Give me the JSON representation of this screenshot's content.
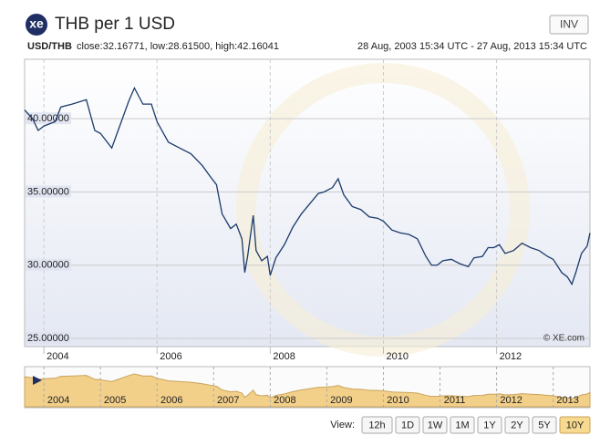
{
  "header": {
    "logo": "xe",
    "title": "THB per 1 USD",
    "button": "INV"
  },
  "info": {
    "pair": "USD/THB",
    "stats": "close:32.16771, low:28.61500, high:42.16041",
    "range": "28 Aug, 2003 15:34 UTC - 27 Aug, 2013 15:34 UTC"
  },
  "chart_data": {
    "type": "line",
    "x": [
      2003.66,
      2003.8,
      2003.9,
      2004.0,
      2004.2,
      2004.3,
      2004.5,
      2004.75,
      2004.9,
      2005.0,
      2005.2,
      2005.35,
      2005.5,
      2005.6,
      2005.75,
      2005.9,
      2006.0,
      2006.2,
      2006.4,
      2006.6,
      2006.8,
      2006.95,
      2007.05,
      2007.15,
      2007.3,
      2007.4,
      2007.5,
      2007.55,
      2007.6,
      2007.7,
      2007.75,
      2007.85,
      2007.95,
      2008.0,
      2008.1,
      2008.25,
      2008.4,
      2008.55,
      2008.7,
      2008.85,
      2008.95,
      2009.1,
      2009.2,
      2009.3,
      2009.45,
      2009.6,
      2009.75,
      2009.9,
      2010.0,
      2010.15,
      2010.3,
      2010.45,
      2010.6,
      2010.75,
      2010.85,
      2010.95,
      2011.05,
      2011.2,
      2011.35,
      2011.5,
      2011.6,
      2011.75,
      2011.85,
      2011.95,
      2012.05,
      2012.15,
      2012.3,
      2012.45,
      2012.6,
      2012.75,
      2012.9,
      2013.0,
      2013.15,
      2013.25,
      2013.33,
      2013.4,
      2013.5,
      2013.6,
      2013.65
    ],
    "values": [
      40.6,
      40.0,
      39.2,
      39.5,
      39.8,
      40.8,
      41.0,
      41.3,
      39.2,
      39.0,
      38.0,
      39.6,
      41.2,
      42.1,
      41.0,
      41.0,
      39.8,
      38.4,
      38.0,
      37.6,
      36.8,
      36.0,
      35.5,
      33.5,
      32.5,
      32.8,
      31.8,
      29.5,
      30.6,
      33.4,
      31.0,
      30.3,
      30.6,
      29.3,
      30.5,
      31.4,
      32.6,
      33.5,
      34.2,
      34.9,
      35.0,
      35.3,
      35.9,
      34.8,
      34.0,
      33.8,
      33.3,
      33.2,
      33.0,
      32.4,
      32.2,
      32.1,
      31.8,
      30.6,
      30.0,
      30.0,
      30.3,
      30.4,
      30.1,
      29.9,
      30.5,
      30.6,
      31.2,
      31.2,
      31.4,
      30.8,
      31.0,
      31.5,
      31.2,
      31.0,
      30.6,
      30.4,
      29.5,
      29.2,
      28.7,
      29.5,
      30.8,
      31.3,
      32.2
    ],
    "color": "#1b3a6b",
    "xlim": [
      2003.66,
      2013.65
    ],
    "ylim": [
      24.44,
      44.06
    ],
    "xticks": [
      2004,
      2006,
      2008,
      2010,
      2012
    ],
    "yticks": [
      {
        "value": 25,
        "label": "25.00000"
      },
      {
        "value": 30,
        "label": "30.00000"
      },
      {
        "value": 35,
        "label": "35.00000"
      },
      {
        "value": 40,
        "label": "40.00000"
      }
    ],
    "grid": true,
    "credit": "© XE.com",
    "navigator_color": "#f3d08a",
    "navigator_ticks": [
      2004,
      2005,
      2006,
      2007,
      2008,
      2009,
      2010,
      2011,
      2012,
      2013
    ]
  },
  "ui": {
    "view_label": "View:",
    "view_buttons": [
      "12h",
      "1D",
      "1W",
      "1M",
      "1Y",
      "2Y",
      "5Y",
      "10Y"
    ],
    "selected_index": 7
  }
}
